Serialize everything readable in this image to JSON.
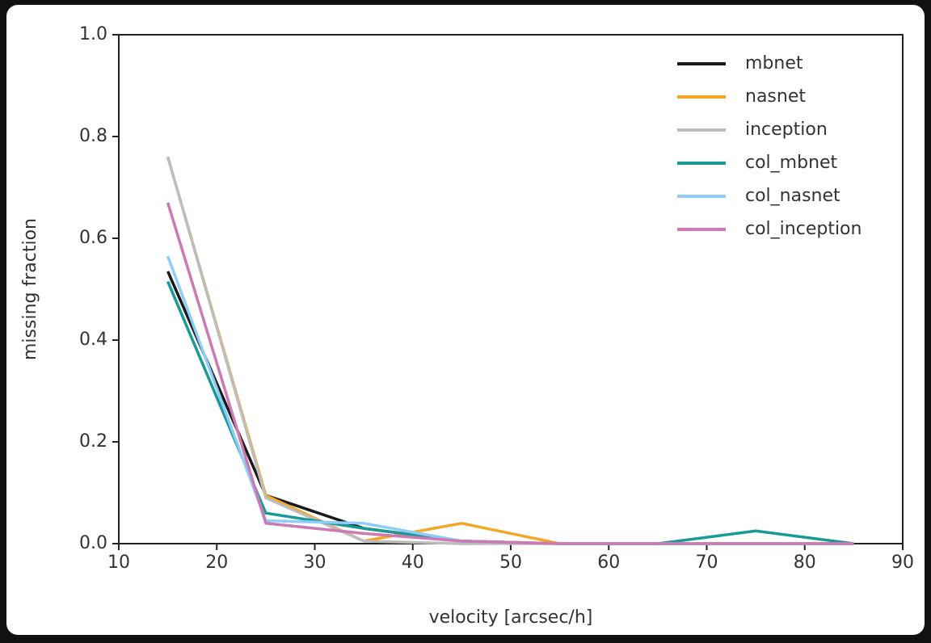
{
  "chart_data": {
    "type": "line",
    "x": [
      15,
      25,
      35,
      45,
      55,
      65,
      75,
      85
    ],
    "series": [
      {
        "name": "mbnet",
        "color": "#1a1a1a",
        "values": [
          0.535,
          0.095,
          0.03,
          0.005,
          0,
          0,
          0,
          0
        ]
      },
      {
        "name": "nasnet",
        "color": "#f5a623",
        "values": [
          0.76,
          0.095,
          0.005,
          0.04,
          0,
          0,
          0,
          0
        ]
      },
      {
        "name": "inception",
        "color": "#bdbdbd",
        "values": [
          0.76,
          0.09,
          0.005,
          0,
          0,
          0,
          0,
          0
        ]
      },
      {
        "name": "col_mbnet",
        "color": "#1a9a96",
        "values": [
          0.515,
          0.06,
          0.03,
          0.005,
          0,
          0,
          0.025,
          0
        ]
      },
      {
        "name": "col_nasnet",
        "color": "#8ecdf8",
        "values": [
          0.565,
          0.045,
          0.04,
          0.005,
          0,
          0,
          0,
          0
        ]
      },
      {
        "name": "col_inception",
        "color": "#cc79b4",
        "values": [
          0.67,
          0.04,
          0.02,
          0.005,
          0,
          0,
          0,
          0
        ]
      }
    ],
    "xlabel": "velocity [arcsec/h]",
    "ylabel": "missing fraction",
    "xlim": [
      10,
      90
    ],
    "ylim": [
      0,
      1
    ],
    "xticks": [
      10,
      20,
      30,
      40,
      50,
      60,
      70,
      80,
      90
    ],
    "yticks": [
      {
        "value": 0,
        "label": "0.0"
      },
      0.2,
      0.4,
      0.6,
      0.8,
      {
        "value": 1,
        "label": "1.0"
      }
    ],
    "legend": "upper right",
    "grid": false
  }
}
